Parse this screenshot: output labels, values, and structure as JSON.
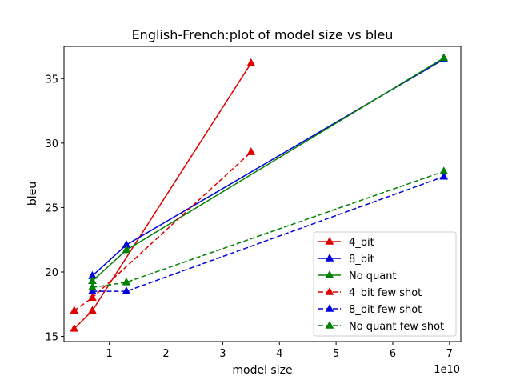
{
  "chart_data": {
    "type": "line",
    "title": "English-French:plot of model size vs bleu",
    "xlabel": "model size",
    "ylabel": "bleu",
    "x_multiplier_label": "1e10",
    "x_scale": 10000000000,
    "xlim": [
      0.2,
      7.2
    ],
    "ylim": [
      14.6,
      37.5
    ],
    "xticks": [
      1,
      2,
      3,
      4,
      5,
      6,
      7
    ],
    "yticks": [
      15,
      20,
      25,
      30,
      35
    ],
    "grid": false,
    "legend_position": "lower-right",
    "series": [
      {
        "name": "4_bit",
        "color": "#e00000",
        "dashed": false,
        "x": [
          0.38,
          0.7,
          3.5
        ],
        "y": [
          15.6,
          17.0,
          36.2
        ]
      },
      {
        "name": "8_bit",
        "color": "#0000dd",
        "dashed": false,
        "x": [
          0.7,
          1.3,
          6.9
        ],
        "y": [
          19.7,
          22.1,
          36.5
        ]
      },
      {
        "name": "No quant",
        "color": "#008000",
        "dashed": false,
        "x": [
          0.7,
          1.3,
          6.9
        ],
        "y": [
          19.3,
          21.7,
          36.6
        ]
      },
      {
        "name": "4_bit few shot",
        "color": "#e00000",
        "dashed": true,
        "x": [
          0.38,
          0.7,
          3.5
        ],
        "y": [
          17.0,
          18.0,
          29.3
        ]
      },
      {
        "name": "8_bit few shot",
        "color": "#0000dd",
        "dashed": true,
        "x": [
          0.7,
          1.3,
          6.9
        ],
        "y": [
          18.5,
          18.5,
          27.4
        ]
      },
      {
        "name": "No quant few shot",
        "color": "#008000",
        "dashed": true,
        "x": [
          0.7,
          1.3,
          6.9
        ],
        "y": [
          18.8,
          19.2,
          27.8
        ]
      }
    ]
  }
}
